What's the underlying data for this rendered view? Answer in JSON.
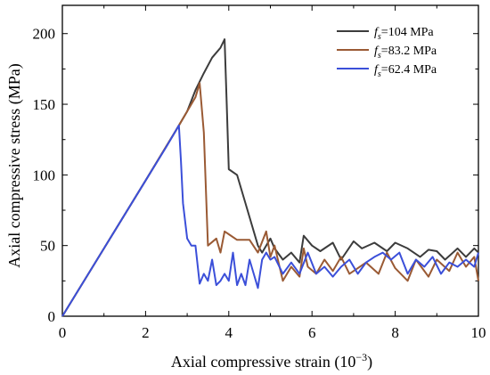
{
  "chart_data": {
    "type": "line",
    "xlabel": "Axial compressive strain (10",
    "xlabel_exponent": "−3",
    "xlabel_suffix": ")",
    "ylabel": "Axial compressive stress (MPa)",
    "xlim": [
      0,
      10
    ],
    "ylim": [
      0,
      220
    ],
    "xticks": [
      0,
      2,
      4,
      6,
      8,
      10
    ],
    "yticks": [
      0,
      50,
      100,
      150,
      200
    ],
    "grid": false,
    "legend_position": "top-right",
    "series": [
      {
        "name_symbol": "f",
        "name_subscript": "s",
        "name_value": "=104 MPa",
        "color": "#3c3c3c",
        "x": [
          0,
          1.0,
          2.0,
          2.7,
          3.0,
          3.2,
          3.4,
          3.6,
          3.8,
          3.9,
          3.95,
          4.0,
          4.2,
          4.4,
          4.7,
          4.8,
          5.0,
          5.1,
          5.3,
          5.5,
          5.7,
          5.8,
          6.0,
          6.2,
          6.5,
          6.7,
          7.0,
          7.2,
          7.5,
          7.8,
          8.0,
          8.3,
          8.6,
          8.8,
          9.0,
          9.2,
          9.5,
          9.7,
          9.9,
          10.0
        ],
        "y": [
          0,
          48,
          96,
          130,
          145,
          160,
          172,
          183,
          190,
          196,
          150,
          104,
          100,
          80,
          50,
          45,
          55,
          48,
          40,
          45,
          38,
          57,
          50,
          46,
          52,
          40,
          53,
          48,
          52,
          46,
          52,
          48,
          42,
          47,
          46,
          40,
          48,
          42,
          48,
          45
        ]
      },
      {
        "name_symbol": "f",
        "name_subscript": "s",
        "name_value": "=83.2 MPa",
        "color": "#9a5a34",
        "x": [
          0,
          1.0,
          2.0,
          2.8,
          3.0,
          3.2,
          3.3,
          3.4,
          3.5,
          3.7,
          3.8,
          3.9,
          4.0,
          4.2,
          4.5,
          4.7,
          4.9,
          5.0,
          5.1,
          5.3,
          5.5,
          5.7,
          5.8,
          5.9,
          6.1,
          6.3,
          6.5,
          6.7,
          6.9,
          7.1,
          7.3,
          7.6,
          7.8,
          8.0,
          8.3,
          8.5,
          8.8,
          9.0,
          9.3,
          9.5,
          9.7,
          9.9,
          10.0
        ],
        "y": [
          0,
          48,
          96,
          135,
          145,
          155,
          165,
          130,
          50,
          55,
          45,
          60,
          58,
          54,
          54,
          45,
          60,
          42,
          50,
          25,
          35,
          28,
          48,
          35,
          30,
          40,
          32,
          42,
          30,
          34,
          38,
          30,
          45,
          34,
          25,
          40,
          28,
          40,
          32,
          45,
          35,
          42,
          25
        ]
      },
      {
        "name_symbol": "f",
        "name_subscript": "s",
        "name_value": "=62.4 MPa",
        "color": "#3b4fd9",
        "x": [
          0,
          1.0,
          2.0,
          2.5,
          2.8,
          2.85,
          2.9,
          3.0,
          3.1,
          3.2,
          3.3,
          3.4,
          3.5,
          3.6,
          3.7,
          3.8,
          3.9,
          4.0,
          4.1,
          4.2,
          4.3,
          4.4,
          4.5,
          4.6,
          4.7,
          4.8,
          4.9,
          5.0,
          5.1,
          5.3,
          5.5,
          5.7,
          5.9,
          6.1,
          6.3,
          6.5,
          6.7,
          6.9,
          7.1,
          7.3,
          7.5,
          7.7,
          7.9,
          8.1,
          8.3,
          8.5,
          8.7,
          8.9,
          9.1,
          9.3,
          9.5,
          9.7,
          9.9,
          10.0
        ],
        "y": [
          0,
          48,
          96,
          120,
          135,
          110,
          80,
          55,
          50,
          50,
          23,
          30,
          25,
          40,
          22,
          25,
          30,
          25,
          45,
          22,
          30,
          22,
          40,
          30,
          20,
          40,
          45,
          40,
          42,
          30,
          38,
          30,
          45,
          30,
          35,
          28,
          35,
          40,
          30,
          38,
          42,
          45,
          40,
          45,
          30,
          40,
          35,
          42,
          30,
          38,
          35,
          40,
          35,
          45
        ]
      }
    ]
  }
}
